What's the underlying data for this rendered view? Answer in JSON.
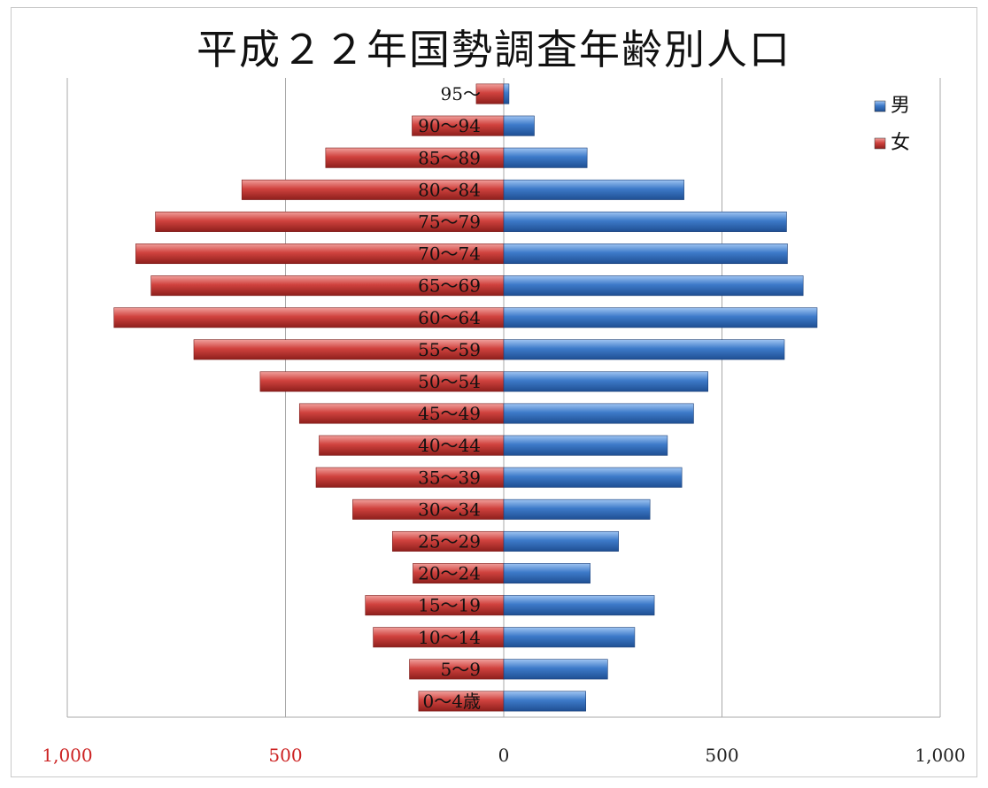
{
  "chart_data": {
    "type": "bar",
    "orientation": "horizontal-population-pyramid",
    "title": "平成２２年国勢調査年齢別人口",
    "categories": [
      "0〜4歳",
      "5〜9",
      "10〜14",
      "15〜19",
      "20〜24",
      "25〜29",
      "30〜34",
      "35〜39",
      "40〜44",
      "45〜49",
      "50〜54",
      "55〜59",
      "60〜64",
      "65〜69",
      "70〜74",
      "75〜79",
      "80〜84",
      "85〜89",
      "90〜94",
      "95〜"
    ],
    "series": [
      {
        "name": "男",
        "color": "#3d7ac9",
        "values": [
          188,
          238,
          300,
          345,
          198,
          263,
          335,
          408,
          375,
          435,
          468,
          643,
          718,
          686,
          650,
          648,
          413,
          191,
          70,
          12
        ]
      },
      {
        "name": "女",
        "color": "#d0423e",
        "values": [
          195,
          216,
          299,
          317,
          208,
          255,
          346,
          430,
          423,
          468,
          558,
          710,
          893,
          808,
          843,
          798,
          600,
          408,
          210,
          63
        ]
      }
    ],
    "xlim": [
      -1000,
      1000
    ],
    "x_ticks": [
      -1000,
      -500,
      0,
      500,
      1000
    ],
    "x_tick_labels": [
      "1,000",
      "500",
      "0",
      "500",
      "1,000"
    ],
    "negative_tick_color": "#cc2222",
    "grid": true,
    "legend_position": "top-right"
  }
}
